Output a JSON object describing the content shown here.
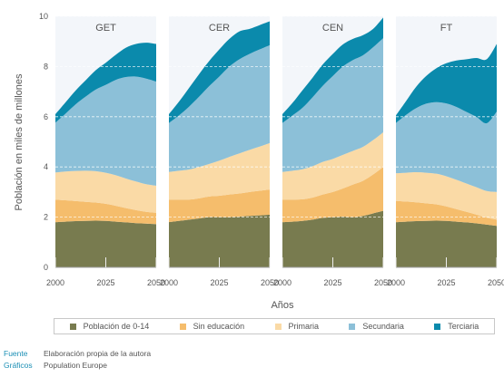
{
  "chart_data": {
    "type": "area",
    "ylabel": "Población en miles de millones",
    "xlabel": "Años",
    "ylim": [
      0,
      10
    ],
    "yticks": [
      0,
      2,
      4,
      6,
      8,
      10
    ],
    "xticks": [
      2000,
      2025,
      2050
    ],
    "grid": "dashed horizontal",
    "stacked": true,
    "x": [
      2000,
      2005,
      2010,
      2015,
      2020,
      2025,
      2030,
      2035,
      2040,
      2045,
      2050
    ],
    "series_names": [
      "Población de 0-14",
      "Sin educación",
      "Primaria",
      "Secundaria",
      "Terciaria"
    ],
    "colors": [
      "#787b4f",
      "#f5bd6c",
      "#fadaa6",
      "#8cc0d8",
      "#0b8aac"
    ],
    "panels": [
      {
        "title": "GET",
        "series": [
          {
            "name": "Población de 0-14",
            "values": [
              1.8,
              1.82,
              1.84,
              1.85,
              1.86,
              1.85,
              1.82,
              1.79,
              1.76,
              1.74,
              1.72
            ]
          },
          {
            "name": "Sin educación",
            "values": [
              0.9,
              0.85,
              0.8,
              0.76,
              0.72,
              0.68,
              0.63,
              0.57,
              0.52,
              0.47,
              0.45
            ]
          },
          {
            "name": "Primaria",
            "values": [
              1.08,
              1.15,
              1.2,
              1.24,
              1.25,
              1.24,
              1.22,
              1.18,
              1.14,
              1.1,
              1.08
            ]
          },
          {
            "name": "Secundaria",
            "values": [
              1.98,
              2.3,
              2.65,
              2.95,
              3.25,
              3.5,
              3.8,
              4.04,
              4.18,
              4.21,
              4.15
            ]
          },
          {
            "name": "Terciaria",
            "values": [
              0.34,
              0.45,
              0.55,
              0.65,
              0.77,
              0.88,
              1.0,
              1.17,
              1.3,
              1.43,
              1.5
            ]
          }
        ]
      },
      {
        "title": "CER",
        "series": [
          {
            "name": "Población de 0-14",
            "values": [
              1.8,
              1.85,
              1.9,
              1.95,
              2.0,
              2.0,
              2.0,
              2.02,
              2.05,
              2.07,
              2.1
            ]
          },
          {
            "name": "Sin educación",
            "values": [
              0.9,
              0.85,
              0.8,
              0.8,
              0.82,
              0.85,
              0.9,
              0.92,
              0.95,
              0.98,
              1.0
            ]
          },
          {
            "name": "Primaria",
            "values": [
              1.1,
              1.15,
              1.2,
              1.25,
              1.3,
              1.4,
              1.5,
              1.6,
              1.68,
              1.76,
              1.85
            ]
          },
          {
            "name": "Secundaria",
            "values": [
              1.95,
              2.2,
              2.5,
              2.8,
              3.1,
              3.35,
              3.6,
              3.75,
              3.82,
              3.87,
              3.9
            ]
          },
          {
            "name": "Terciaria",
            "values": [
              0.35,
              0.55,
              0.75,
              0.9,
              1.0,
              1.08,
              1.1,
              1.11,
              1.0,
              0.97,
              0.95
            ]
          }
        ]
      },
      {
        "title": "CEN",
        "series": [
          {
            "name": "Población de 0-14",
            "values": [
              1.8,
              1.82,
              1.85,
              1.9,
              1.97,
              2.0,
              2.02,
              2.0,
              2.05,
              2.15,
              2.25
            ]
          },
          {
            "name": "Sin educación",
            "values": [
              0.9,
              0.88,
              0.86,
              0.88,
              0.93,
              1.0,
              1.12,
              1.3,
              1.4,
              1.55,
              1.75
            ]
          },
          {
            "name": "Primaria",
            "values": [
              1.1,
              1.15,
              1.2,
              1.25,
              1.3,
              1.32,
              1.34,
              1.34,
              1.35,
              1.37,
              1.38
            ]
          },
          {
            "name": "Secundaria",
            "values": [
              1.95,
              2.2,
              2.45,
              2.75,
              3.03,
              3.3,
              3.52,
              3.62,
              3.65,
              3.7,
              3.75
            ]
          },
          {
            "name": "Terciaria",
            "values": [
              0.35,
              0.5,
              0.7,
              0.78,
              0.85,
              0.88,
              0.88,
              0.84,
              0.8,
              0.73,
              0.82
            ]
          }
        ]
      },
      {
        "title": "FT",
        "series": [
          {
            "name": "Población de 0-14",
            "values": [
              1.8,
              1.82,
              1.84,
              1.85,
              1.86,
              1.85,
              1.82,
              1.79,
              1.75,
              1.7,
              1.65
            ]
          },
          {
            "name": "Sin educación",
            "values": [
              0.85,
              0.8,
              0.75,
              0.7,
              0.65,
              0.58,
              0.5,
              0.42,
              0.35,
              0.28,
              0.25
            ]
          },
          {
            "name": "Primaria",
            "values": [
              1.1,
              1.15,
              1.2,
              1.22,
              1.22,
              1.2,
              1.17,
              1.13,
              1.09,
              1.06,
              1.1
            ]
          },
          {
            "name": "Secundaria",
            "values": [
              2.0,
              2.3,
              2.55,
              2.75,
              2.85,
              2.9,
              2.9,
              2.85,
              2.8,
              2.7,
              3.2
            ]
          },
          {
            "name": "Terciaria",
            "values": [
              0.3,
              0.55,
              0.85,
              1.1,
              1.35,
              1.6,
              1.85,
              2.1,
              2.35,
              2.55,
              2.7
            ]
          }
        ]
      }
    ]
  },
  "legend": {
    "items": [
      {
        "label": "Población de 0-14",
        "color": "#787b4f"
      },
      {
        "label": "Sin educación",
        "color": "#f5bd6c"
      },
      {
        "label": "Primaria",
        "color": "#fadaa6"
      },
      {
        "label": "Secundaria",
        "color": "#8cc0d8"
      },
      {
        "label": "Terciaria",
        "color": "#0b8aac"
      }
    ]
  },
  "footer": {
    "fuente_key": "Fuente",
    "fuente_val": "Elaboración propia de la autora",
    "graficos_key": "Gráficos",
    "graficos_val": "Population Europe"
  }
}
